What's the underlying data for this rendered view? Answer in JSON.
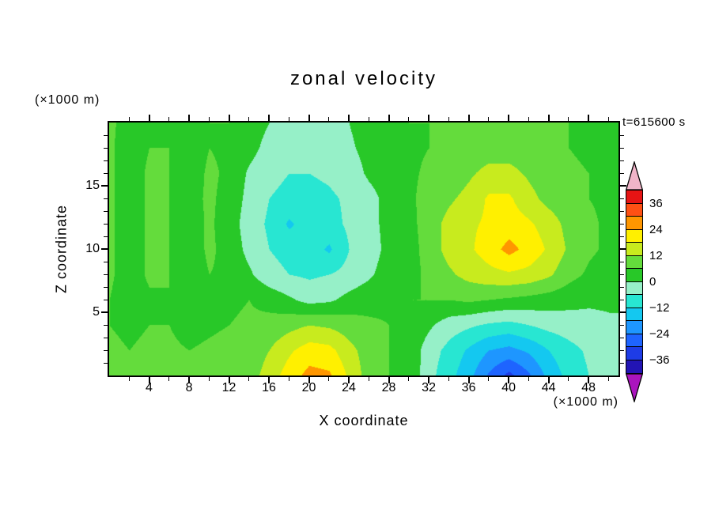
{
  "title": "zonal velocity",
  "time_label": "t=615600 s",
  "axes": {
    "x_label": "X coordinate",
    "y_label": "Z coordinate",
    "x_unit": "(×1000 m)",
    "y_unit": "(×1000 m)",
    "x_ticks": [
      4,
      8,
      12,
      16,
      20,
      24,
      28,
      32,
      36,
      40,
      44,
      48
    ],
    "y_ticks": [
      5,
      10,
      15
    ]
  },
  "colorbar": {
    "labels": [
      "36",
      "24",
      "12",
      "0",
      "−12",
      "−24",
      "−36"
    ],
    "label_values": [
      36,
      24,
      12,
      0,
      -12,
      -24,
      -36
    ],
    "levels": [
      -42,
      -36,
      -30,
      -24,
      -18,
      -12,
      -6,
      0,
      6,
      12,
      18,
      24,
      30,
      36,
      42
    ],
    "colors": [
      "#2214b4",
      "#1e3ce6",
      "#1e64ff",
      "#1e96ff",
      "#14c8f0",
      "#28e6d2",
      "#96f0c8",
      "#28c828",
      "#64dc3c",
      "#c8eb1e",
      "#fff000",
      "#ff9600",
      "#ff5014",
      "#e61414"
    ],
    "below_color": "#aa14be",
    "above_color": "#f0b4c8"
  },
  "chart_data": {
    "type": "heatmap",
    "subtype": "filled-contour",
    "title": "zonal velocity",
    "xlabel": "X coordinate (×1000 m)",
    "ylabel": "Z coordinate (×1000 m)",
    "annotation": "t=615600 s",
    "xlim": [
      0,
      51
    ],
    "zlim": [
      0,
      20
    ],
    "contour_interval": 6,
    "contour_levels": [
      -42,
      -36,
      -30,
      -24,
      -18,
      -12,
      -6,
      0,
      6,
      12,
      18,
      24,
      30,
      36,
      42
    ],
    "x": [
      0,
      2,
      4,
      6,
      8,
      10,
      12,
      14,
      16,
      18,
      20,
      22,
      24,
      26,
      28,
      30,
      32,
      34,
      36,
      38,
      40,
      42,
      44,
      46,
      48,
      50
    ],
    "z": [
      0,
      2,
      4,
      6,
      8,
      10,
      12,
      14,
      16,
      18,
      20
    ],
    "values": [
      [
        7,
        7,
        8,
        8,
        7,
        8,
        10,
        9,
        15,
        21,
        26,
        25,
        17,
        9,
        6,
        5,
        -4,
        -10,
        -16,
        -25,
        -32,
        -25,
        -16,
        -10,
        -6,
        -4
      ],
      [
        7,
        6,
        7,
        7,
        6,
        7,
        8,
        8,
        12,
        17,
        21,
        20,
        14,
        9,
        6,
        4,
        -3,
        -8,
        -13,
        -18,
        -20,
        -17,
        -12,
        -8,
        -5,
        -3
      ],
      [
        6,
        5,
        6,
        6,
        4,
        5,
        6,
        7,
        8,
        10,
        12,
        11,
        9,
        7,
        6,
        5,
        1,
        -3,
        -5,
        -7,
        -8,
        -6,
        -4,
        -3,
        -2,
        -1
      ],
      [
        6,
        3,
        5,
        6,
        3,
        4,
        5,
        6,
        4,
        1,
        -2,
        -1,
        2,
        4,
        5,
        6,
        6,
        6,
        7,
        6,
        5,
        4,
        3,
        2,
        1,
        1
      ],
      [
        7,
        3,
        7,
        6,
        3,
        6,
        5,
        1,
        -4,
        -6,
        -7,
        -6,
        -4,
        -1,
        3,
        3,
        8,
        11,
        14,
        16,
        17,
        16,
        13,
        8,
        5,
        3
      ],
      [
        7,
        3,
        7,
        6,
        3,
        7,
        4,
        -2,
        -6,
        -8,
        -9,
        -13,
        -6,
        -3,
        2,
        3,
        9,
        14,
        17,
        21,
        26,
        22,
        17,
        11,
        7,
        5
      ],
      [
        7,
        3,
        7,
        6,
        3,
        7,
        3,
        -3,
        -7,
        -13,
        -9,
        -8,
        -5,
        -2,
        2,
        4,
        9,
        14,
        17,
        19,
        21,
        19,
        15,
        10,
        7,
        5
      ],
      [
        7,
        3,
        7,
        6,
        4,
        7,
        4,
        -2,
        -6,
        -8,
        -8,
        -7,
        -5,
        -2,
        2,
        5,
        8,
        11,
        14,
        19,
        19,
        14,
        10,
        8,
        6,
        5
      ],
      [
        7,
        3,
        7,
        6,
        3,
        7,
        5,
        -1,
        -4,
        -6,
        -6,
        -5,
        -3,
        1,
        3,
        5,
        7,
        8,
        11,
        14,
        14,
        11,
        8,
        7,
        6,
        5
      ],
      [
        7,
        3,
        6,
        6,
        3,
        6,
        5,
        2,
        -2,
        -4,
        -4,
        -3,
        -1,
        2,
        4,
        5,
        6,
        7,
        8,
        9,
        9,
        8,
        7,
        6,
        5,
        5
      ],
      [
        7,
        4,
        6,
        5,
        3,
        6,
        6,
        3,
        0,
        -2,
        -2,
        -1,
        0,
        3,
        5,
        6,
        6,
        7,
        8,
        8,
        8,
        7,
        6,
        6,
        5,
        5
      ]
    ]
  }
}
